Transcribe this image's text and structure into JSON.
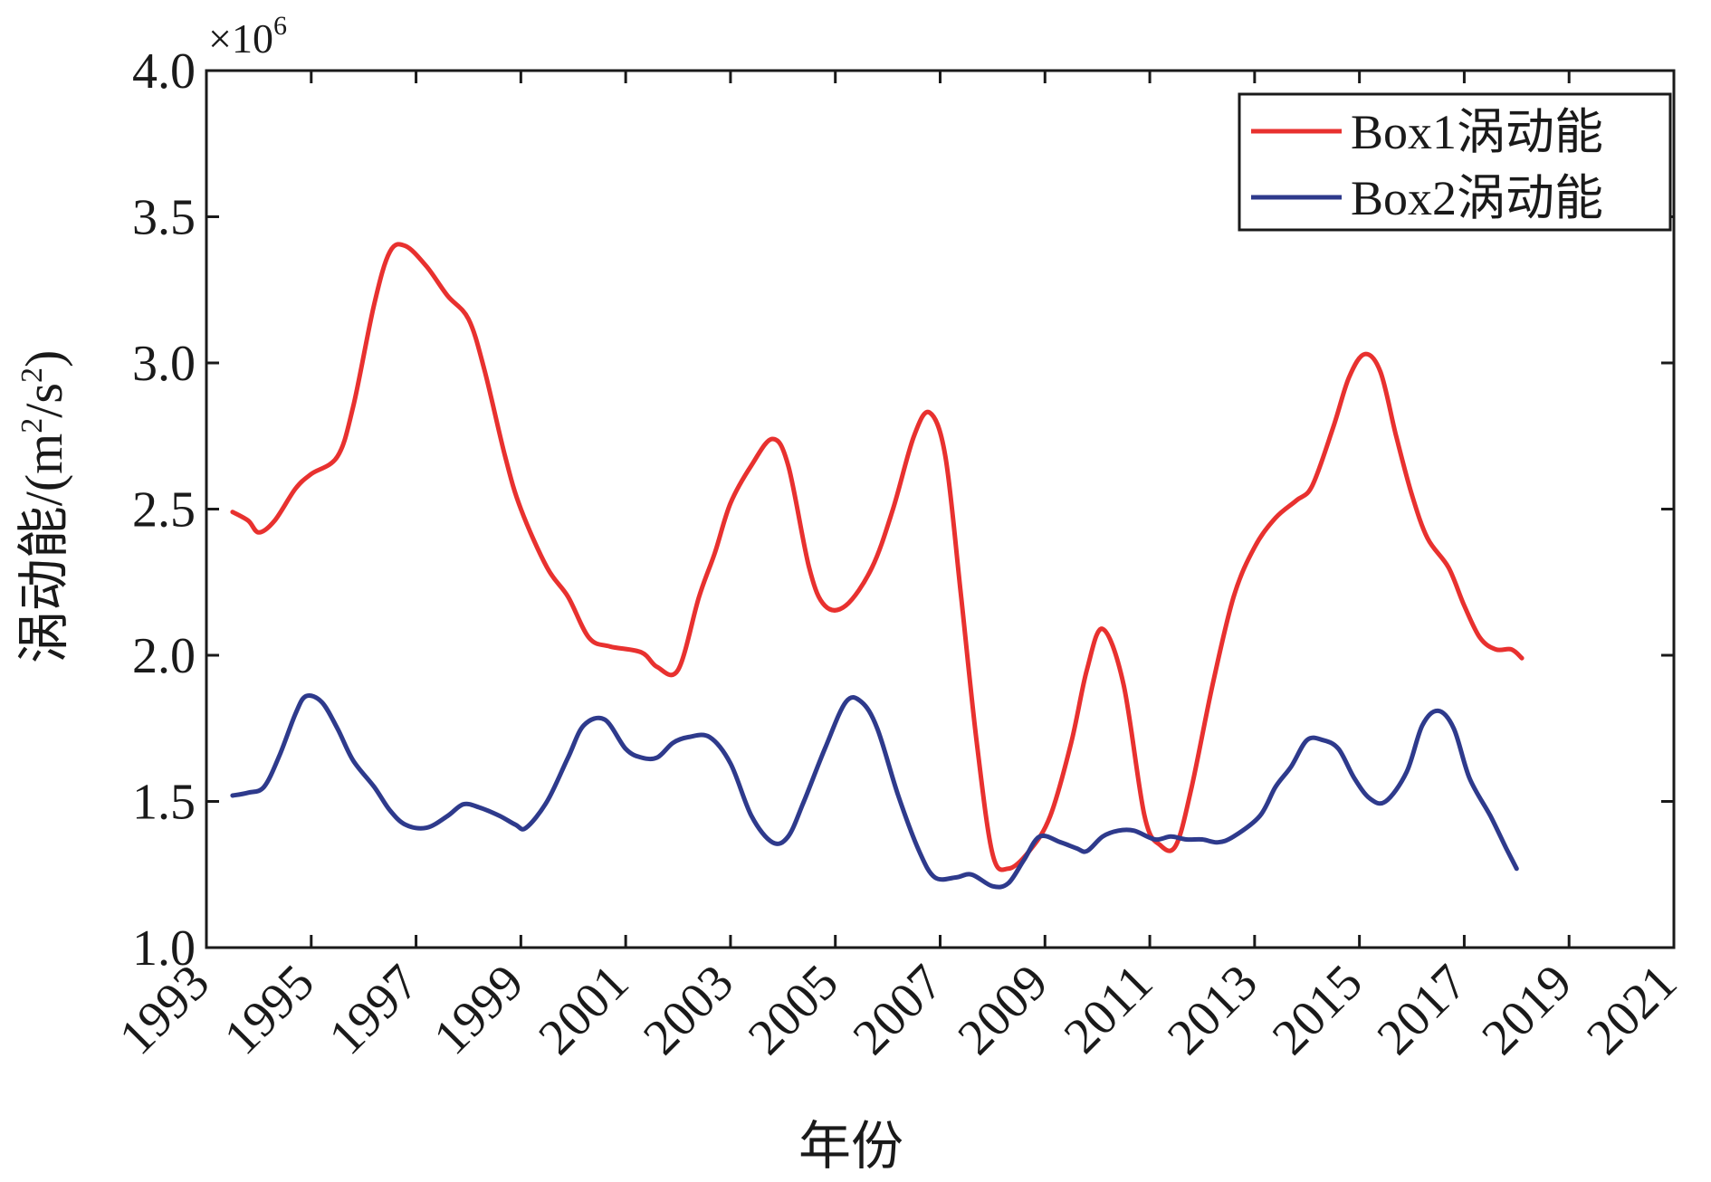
{
  "chart_data": {
    "type": "line",
    "xlabel": "年份",
    "ylabel": "涡动能/(m²/s²)",
    "ylabel_parts": {
      "prefix": "涡动能/(m",
      "sup1": "2",
      "mid": "/s",
      "sup2": "2",
      "suffix": ")"
    },
    "y_multiplier": {
      "base": "×10",
      "exp": "6"
    },
    "xlim": [
      1993,
      2021
    ],
    "ylim": [
      1.0,
      4.0
    ],
    "x_ticks": [
      "1993",
      "1995",
      "1997",
      "1999",
      "2001",
      "2003",
      "2005",
      "2007",
      "2009",
      "2011",
      "2013",
      "2015",
      "2017",
      "2019",
      "2021"
    ],
    "y_ticks": [
      "1.0",
      "1.5",
      "2.0",
      "2.5",
      "3.0",
      "3.5",
      "4.0"
    ],
    "legend_position": "top-right",
    "grid": false,
    "series": [
      {
        "name": "Box1涡动能",
        "color": "#e8312f",
        "points": [
          [
            1993.5,
            2.49
          ],
          [
            1993.8,
            2.46
          ],
          [
            1994.0,
            2.42
          ],
          [
            1994.3,
            2.46
          ],
          [
            1994.7,
            2.57
          ],
          [
            1995.0,
            2.62
          ],
          [
            1995.5,
            2.68
          ],
          [
            1995.8,
            2.85
          ],
          [
            1996.2,
            3.2
          ],
          [
            1996.5,
            3.38
          ],
          [
            1996.8,
            3.4
          ],
          [
            1997.2,
            3.33
          ],
          [
            1997.6,
            3.23
          ],
          [
            1998.0,
            3.15
          ],
          [
            1998.3,
            2.98
          ],
          [
            1998.7,
            2.68
          ],
          [
            1999.0,
            2.5
          ],
          [
            1999.5,
            2.3
          ],
          [
            1999.9,
            2.2
          ],
          [
            2000.3,
            2.06
          ],
          [
            2000.7,
            2.03
          ],
          [
            2001.3,
            2.01
          ],
          [
            2001.6,
            1.96
          ],
          [
            2002.0,
            1.95
          ],
          [
            2002.4,
            2.2
          ],
          [
            2002.7,
            2.35
          ],
          [
            2003.0,
            2.52
          ],
          [
            2003.4,
            2.65
          ],
          [
            2003.8,
            2.74
          ],
          [
            2004.1,
            2.65
          ],
          [
            2004.5,
            2.3
          ],
          [
            2004.8,
            2.17
          ],
          [
            2005.2,
            2.17
          ],
          [
            2005.7,
            2.3
          ],
          [
            2006.1,
            2.5
          ],
          [
            2006.5,
            2.75
          ],
          [
            2006.8,
            2.83
          ],
          [
            2007.1,
            2.68
          ],
          [
            2007.4,
            2.2
          ],
          [
            2007.7,
            1.7
          ],
          [
            2008.0,
            1.32
          ],
          [
            2008.3,
            1.27
          ],
          [
            2008.7,
            1.33
          ],
          [
            2009.1,
            1.45
          ],
          [
            2009.5,
            1.7
          ],
          [
            2009.8,
            1.95
          ],
          [
            2010.1,
            2.09
          ],
          [
            2010.5,
            1.9
          ],
          [
            2010.9,
            1.45
          ],
          [
            2011.2,
            1.35
          ],
          [
            2011.5,
            1.35
          ],
          [
            2011.8,
            1.55
          ],
          [
            2012.2,
            1.9
          ],
          [
            2012.6,
            2.2
          ],
          [
            2013.0,
            2.37
          ],
          [
            2013.4,
            2.47
          ],
          [
            2013.8,
            2.53
          ],
          [
            2014.1,
            2.58
          ],
          [
            2014.5,
            2.78
          ],
          [
            2014.8,
            2.95
          ],
          [
            2015.1,
            3.03
          ],
          [
            2015.4,
            2.97
          ],
          [
            2015.7,
            2.75
          ],
          [
            2016.0,
            2.55
          ],
          [
            2016.3,
            2.4
          ],
          [
            2016.7,
            2.3
          ],
          [
            2017.0,
            2.17
          ],
          [
            2017.3,
            2.06
          ],
          [
            2017.6,
            2.02
          ],
          [
            2017.9,
            2.02
          ],
          [
            2018.1,
            1.99
          ]
        ]
      },
      {
        "name": "Box2涡动能",
        "color": "#2e3a8c",
        "points": [
          [
            1993.5,
            1.52
          ],
          [
            1993.8,
            1.53
          ],
          [
            1994.1,
            1.55
          ],
          [
            1994.4,
            1.66
          ],
          [
            1994.7,
            1.8
          ],
          [
            1994.9,
            1.86
          ],
          [
            1995.2,
            1.84
          ],
          [
            1995.5,
            1.75
          ],
          [
            1995.8,
            1.64
          ],
          [
            1996.2,
            1.55
          ],
          [
            1996.5,
            1.47
          ],
          [
            1996.8,
            1.42
          ],
          [
            1997.2,
            1.41
          ],
          [
            1997.6,
            1.45
          ],
          [
            1997.9,
            1.49
          ],
          [
            1998.2,
            1.48
          ],
          [
            1998.6,
            1.45
          ],
          [
            1998.9,
            1.42
          ],
          [
            1999.1,
            1.41
          ],
          [
            1999.5,
            1.5
          ],
          [
            1999.9,
            1.65
          ],
          [
            2000.2,
            1.76
          ],
          [
            2000.6,
            1.78
          ],
          [
            2001.0,
            1.68
          ],
          [
            2001.3,
            1.65
          ],
          [
            2001.6,
            1.65
          ],
          [
            2001.9,
            1.7
          ],
          [
            2002.2,
            1.72
          ],
          [
            2002.6,
            1.72
          ],
          [
            2003.0,
            1.63
          ],
          [
            2003.4,
            1.45
          ],
          [
            2003.8,
            1.36
          ],
          [
            2004.1,
            1.38
          ],
          [
            2004.4,
            1.5
          ],
          [
            2004.8,
            1.68
          ],
          [
            2005.2,
            1.84
          ],
          [
            2005.5,
            1.84
          ],
          [
            2005.8,
            1.75
          ],
          [
            2006.2,
            1.52
          ],
          [
            2006.6,
            1.33
          ],
          [
            2006.9,
            1.24
          ],
          [
            2007.3,
            1.24
          ],
          [
            2007.6,
            1.25
          ],
          [
            2008.0,
            1.21
          ],
          [
            2008.3,
            1.22
          ],
          [
            2008.6,
            1.3
          ],
          [
            2008.9,
            1.38
          ],
          [
            2009.3,
            1.36
          ],
          [
            2009.6,
            1.34
          ],
          [
            2009.8,
            1.33
          ],
          [
            2010.1,
            1.38
          ],
          [
            2010.4,
            1.4
          ],
          [
            2010.7,
            1.4
          ],
          [
            2011.1,
            1.37
          ],
          [
            2011.4,
            1.38
          ],
          [
            2011.7,
            1.37
          ],
          [
            2012.0,
            1.37
          ],
          [
            2012.3,
            1.36
          ],
          [
            2012.6,
            1.38
          ],
          [
            2013.1,
            1.45
          ],
          [
            2013.4,
            1.55
          ],
          [
            2013.7,
            1.62
          ],
          [
            2014.0,
            1.71
          ],
          [
            2014.3,
            1.71
          ],
          [
            2014.6,
            1.68
          ],
          [
            2014.9,
            1.58
          ],
          [
            2015.2,
            1.51
          ],
          [
            2015.5,
            1.5
          ],
          [
            2015.9,
            1.6
          ],
          [
            2016.2,
            1.76
          ],
          [
            2016.5,
            1.81
          ],
          [
            2016.8,
            1.75
          ],
          [
            2017.1,
            1.58
          ],
          [
            2017.5,
            1.45
          ],
          [
            2017.8,
            1.34
          ],
          [
            2018.0,
            1.27
          ]
        ]
      }
    ]
  }
}
